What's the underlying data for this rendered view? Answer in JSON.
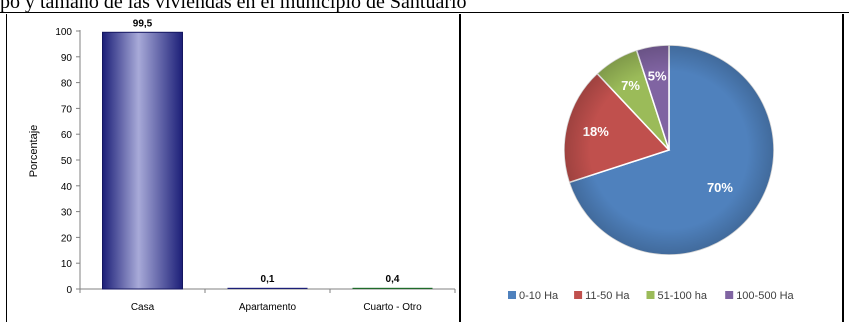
{
  "caption": "po y tamaño de las viviendas en el municipio de Santuario",
  "chart_data": [
    {
      "type": "bar",
      "categories": [
        "Casa",
        "Apartamento",
        "Cuarto - Otro"
      ],
      "values": [
        99.5,
        0.1,
        0.4
      ],
      "value_labels": [
        "99,5",
        "0,1",
        "0,4"
      ],
      "ylabel": "Porcentaje",
      "ylim": [
        0,
        100
      ],
      "yticks": [
        0,
        10,
        20,
        30,
        40,
        50,
        60,
        70,
        80,
        90,
        100
      ],
      "grid": false,
      "colors": {
        "bar_light": "#a8aad8",
        "bar_dark": "#1c1f78",
        "bar3": "#1f6b2a"
      }
    },
    {
      "type": "pie",
      "labels": [
        "0-10 Ha",
        "11-50 Ha",
        "51-100 ha",
        "100-500 Ha"
      ],
      "values": [
        70,
        18,
        7,
        5
      ],
      "value_labels": [
        "70%",
        "18%",
        "7%",
        "5%"
      ],
      "colors": [
        "#4f81bd",
        "#c0504d",
        "#9bbb59",
        "#8064a2"
      ],
      "legend": "bottom"
    }
  ]
}
